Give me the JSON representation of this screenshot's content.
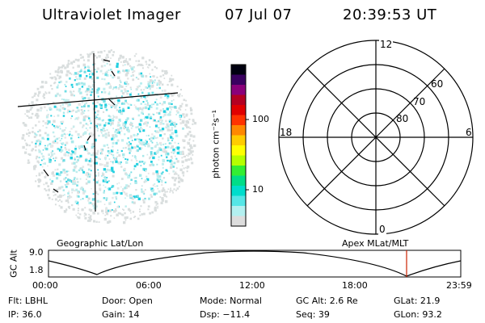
{
  "header": {
    "title": "Ultraviolet Imager",
    "date": "07 Jul 07",
    "time": "20:39:53 UT"
  },
  "colorbar": {
    "unit_label": "photon cm⁻²s⁻¹",
    "ticks": [
      "100",
      "10"
    ],
    "colors": [
      "#000010",
      "#3a0060",
      "#8a007a",
      "#b40022",
      "#e00000",
      "#ff3300",
      "#ff8800",
      "#ffcc00",
      "#ffff00",
      "#b5ff00",
      "#33ee33",
      "#00dd88",
      "#00ddcc",
      "#55e6e6",
      "#b3f0f0",
      "#dddddd"
    ]
  },
  "polar": {
    "mlt_labels": {
      "top": "12",
      "left": "18",
      "right": "6",
      "bottom": "0"
    },
    "lat_labels": [
      "60",
      "70",
      "80"
    ]
  },
  "timeline": {
    "left_label": "Geographic Lat/Lon",
    "right_label": "Apex MLat/MLT",
    "y_axis_label": "GC Alt",
    "y_ticks": [
      "9.0",
      "1.8"
    ],
    "x_ticks": [
      "00:00",
      "06:00",
      "12:00",
      "18:00",
      "23:59"
    ],
    "current_marker_color": "#cc2200"
  },
  "status": {
    "flt": "Flt: LBHL",
    "ip": "IP: 36.0",
    "door": "Door: Open",
    "gain": "Gain: 14",
    "mode": "Mode: Normal",
    "dsp": "Dsp:  −11.4",
    "gc_alt": "GC Alt: 2.6 Re",
    "seq": "Seq: 39",
    "glat": "GLat:  21.9",
    "glon": "GLon:  93.2"
  }
}
